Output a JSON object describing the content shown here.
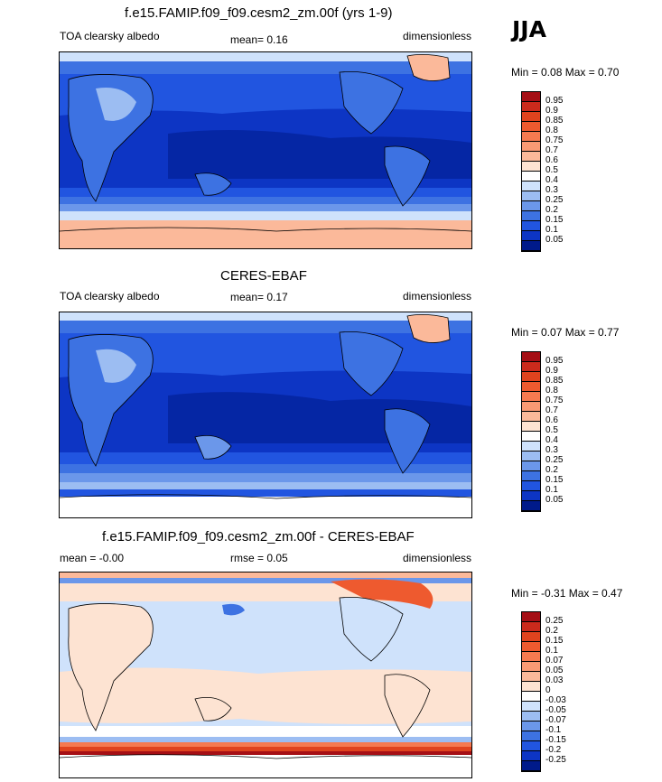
{
  "season": "JJA",
  "panels": [
    {
      "title": "f.e15.FAMIP.f09_f09.cesm2_zm.00f (yrs 1-9)",
      "left": "TOA clearsky albedo",
      "mid": "mean=   0.16",
      "right": "dimensionless",
      "minmax": "Min =   0.08 Max =   0.70",
      "colorbar": {
        "levels": [
          "0.95",
          "0.9",
          "0.85",
          "0.8",
          "0.75",
          "0.7",
          "0.6",
          "0.5",
          "0.4",
          "0.3",
          "0.25",
          "0.2",
          "0.15",
          "0.1",
          "0.05"
        ],
        "colors": [
          "#a50f15",
          "#cb2a1c",
          "#e0431e",
          "#ee5a2f",
          "#f67a50",
          "#f99a74",
          "#fbb99a",
          "#fde3d2",
          "#ffffff",
          "#cfe2fb",
          "#9cbdf2",
          "#6b97ea",
          "#3d72e2",
          "#2155e0",
          "#0d35c4",
          "#001a8a"
        ]
      },
      "chart_data": {
        "type": "heatmap",
        "variable": "TOA clearsky albedo",
        "units": "dimensionless",
        "mean": 0.16,
        "min": 0.08,
        "max": 0.7,
        "contour_levels": [
          0.05,
          0.1,
          0.15,
          0.2,
          0.25,
          0.3,
          0.4,
          0.5,
          0.6,
          0.7,
          0.75,
          0.8,
          0.85,
          0.9,
          0.95
        ]
      }
    },
    {
      "title": "CERES-EBAF",
      "left": "TOA clearsky albedo",
      "mid": "mean=   0.17",
      "right": "dimensionless",
      "minmax": "Min =   0.07 Max =   0.77",
      "colorbar": {
        "levels": [
          "0.95",
          "0.9",
          "0.85",
          "0.8",
          "0.75",
          "0.7",
          "0.6",
          "0.5",
          "0.4",
          "0.3",
          "0.25",
          "0.2",
          "0.15",
          "0.1",
          "0.05"
        ],
        "colors": [
          "#a50f15",
          "#cb2a1c",
          "#e0431e",
          "#ee5a2f",
          "#f67a50",
          "#f99a74",
          "#fbb99a",
          "#fde3d2",
          "#ffffff",
          "#cfe2fb",
          "#9cbdf2",
          "#6b97ea",
          "#3d72e2",
          "#2155e0",
          "#0d35c4",
          "#001a8a"
        ]
      },
      "chart_data": {
        "type": "heatmap",
        "variable": "TOA clearsky albedo",
        "units": "dimensionless",
        "mean": 0.17,
        "min": 0.07,
        "max": 0.77,
        "contour_levels": [
          0.05,
          0.1,
          0.15,
          0.2,
          0.25,
          0.3,
          0.4,
          0.5,
          0.6,
          0.7,
          0.75,
          0.8,
          0.85,
          0.9,
          0.95
        ]
      }
    },
    {
      "title": "f.e15.FAMIP.f09_f09.cesm2_zm.00f - CERES-EBAF",
      "left": "mean =  -0.00",
      "mid": "rmse =   0.05",
      "right": "dimensionless",
      "minmax": "Min =  -0.31 Max =   0.47",
      "colorbar": {
        "levels": [
          "0.25",
          "0.2",
          "0.15",
          "0.1",
          "0.07",
          "0.05",
          "0.03",
          "0",
          "-0.03",
          "-0.05",
          "-0.07",
          "-0.1",
          "-0.15",
          "-0.2",
          "-0.25"
        ],
        "colors": [
          "#a50f15",
          "#cb2a1c",
          "#e0431e",
          "#ee5a2f",
          "#f67a50",
          "#f99a74",
          "#fbb99a",
          "#fde3d2",
          "#ffffff",
          "#cfe2fb",
          "#9cbdf2",
          "#6b97ea",
          "#3d72e2",
          "#2155e0",
          "#0d35c4",
          "#001a8a"
        ]
      },
      "chart_data": {
        "type": "heatmap",
        "variable": "difference",
        "units": "dimensionless",
        "mean": -0.0,
        "rmse": 0.05,
        "min": -0.31,
        "max": 0.47,
        "contour_levels": [
          -0.25,
          -0.2,
          -0.15,
          -0.1,
          -0.07,
          -0.05,
          -0.03,
          0,
          0.03,
          0.05,
          0.07,
          0.1,
          0.15,
          0.2,
          0.25
        ]
      }
    }
  ]
}
